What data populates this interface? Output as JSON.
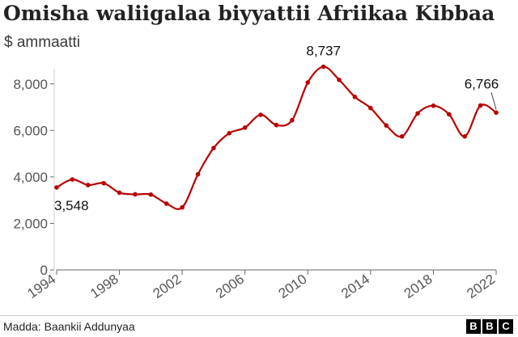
{
  "title": "Omisha waliigalaa biyyattii Afriikaa Kibbaa",
  "subtitle": "$ ammaatti",
  "source": "Madda: Baankii Addunyaa",
  "brand": [
    "B",
    "B",
    "C"
  ],
  "colors": {
    "line": "#b80000",
    "text": "#222222",
    "axis": "#666666",
    "grid": "#cccccc"
  },
  "chart_data": {
    "type": "line",
    "x": [
      1994,
      1995,
      1996,
      1997,
      1998,
      1999,
      2000,
      2001,
      2002,
      2003,
      2004,
      2005,
      2006,
      2007,
      2008,
      2009,
      2010,
      2011,
      2012,
      2013,
      2014,
      2015,
      2016,
      2017,
      2018,
      2019,
      2020,
      2021,
      2022
    ],
    "series": [
      {
        "values": [
          3548,
          3890,
          3650,
          3730,
          3320,
          3250,
          3240,
          2850,
          2690,
          4110,
          5240,
          5880,
          6120,
          6670,
          6230,
          6440,
          8060,
          8737,
          8170,
          7440,
          6960,
          6210,
          5740,
          6730,
          7060,
          6690,
          5740,
          7070,
          6766
        ]
      }
    ],
    "xticks": [
      1994,
      1998,
      2002,
      2006,
      2010,
      2014,
      2018,
      2022
    ],
    "xtick_labels": [
      "1994",
      "1998",
      "2002",
      "2006",
      "2010",
      "2014",
      "2018",
      "2022"
    ],
    "yticks": [
      0,
      2000,
      4000,
      6000,
      8000
    ],
    "ytick_labels": [
      "0",
      "2,000",
      "4,000",
      "6,000",
      "8,000"
    ],
    "xlim": [
      1994,
      2022
    ],
    "ylim": [
      0,
      9000
    ],
    "annotations": [
      {
        "x": 1994,
        "y": 3548,
        "text": "3,548"
      },
      {
        "x": 2011,
        "y": 8737,
        "text": "8,737"
      },
      {
        "x": 2022,
        "y": 6766,
        "text": "6,766"
      }
    ],
    "grid": false,
    "legend": "none"
  }
}
